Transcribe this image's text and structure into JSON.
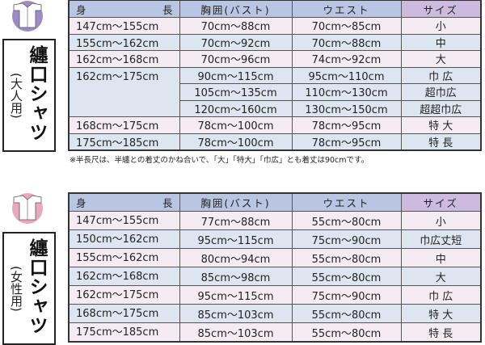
{
  "headers": {
    "height_left": "身",
    "height_right": "長",
    "bust": "胸囲(バスト)",
    "waist": "ウエスト",
    "size": "サイズ"
  },
  "colors": {
    "header": "#b9c6e3",
    "size_header": "#cdbbdf",
    "row_pink": "#f4ecf2",
    "row_blue": "#dde5f1",
    "adult_icon": "#9c8ac4",
    "women_icon": "#e8a9bd"
  },
  "adult": {
    "icon": "shirt-icon",
    "title": "纏口シャツ",
    "subtitle": "(大人用)",
    "rows": [
      {
        "height": "147cm〜155cm",
        "bust": "70cm〜88cm",
        "waist": "70cm〜85cm",
        "size": "小"
      },
      {
        "height": "155cm〜162cm",
        "bust": "70cm〜92cm",
        "waist": "70cm〜88cm",
        "size": "中"
      },
      {
        "height": "162cm〜168cm",
        "bust": "70cm〜96cm",
        "waist": "74cm〜92cm",
        "size": "大"
      },
      {
        "height": "162cm〜175cm",
        "bust": "90cm〜115cm",
        "waist": "95cm〜110cm",
        "size": "巾 広"
      },
      {
        "bust": "105cm〜135cm",
        "waist": "110cm〜130cm",
        "size": "超巾広"
      },
      {
        "bust": "120cm〜160cm",
        "waist": "130cm〜150cm",
        "size": "超超巾広"
      },
      {
        "height": "168cm〜175cm",
        "bust": "78cm〜100cm",
        "waist": "78cm〜95cm",
        "size": "特 大"
      },
      {
        "height": "175cm〜185cm",
        "bust": "78cm〜100cm",
        "waist": "78cm〜95cm",
        "size": "特 長"
      }
    ],
    "note": "※半長尺は、半纏との着丈のかね合いで、「大」「特大」「巾広」とも着丈は90cmです。"
  },
  "women": {
    "icon": "shirt-icon",
    "title": "纏口シャツ",
    "subtitle": "(女性用)",
    "rows": [
      {
        "height": "147cm〜155cm",
        "bust": "77cm〜88cm",
        "waist": "55cm〜80cm",
        "size": "小"
      },
      {
        "height": "150cm〜162cm",
        "bust": "95cm〜115cm",
        "waist": "75cm〜90cm",
        "size": "巾広丈短"
      },
      {
        "height": "155cm〜162cm",
        "bust": "80cm〜94cm",
        "waist": "55cm〜80cm",
        "size": "中"
      },
      {
        "height": "162cm〜168cm",
        "bust": "85cm〜98cm",
        "waist": "55cm〜80cm",
        "size": "大"
      },
      {
        "height": "162cm〜175cm",
        "bust": "95cm〜115cm",
        "waist": "75cm〜90cm",
        "size": "巾 広"
      },
      {
        "height": "168cm〜175cm",
        "bust": "85cm〜103cm",
        "waist": "55cm〜80cm",
        "size": "特 大"
      },
      {
        "height": "175cm〜185cm",
        "bust": "85cm〜103cm",
        "waist": "55cm〜80cm",
        "size": "特 長"
      }
    ]
  }
}
